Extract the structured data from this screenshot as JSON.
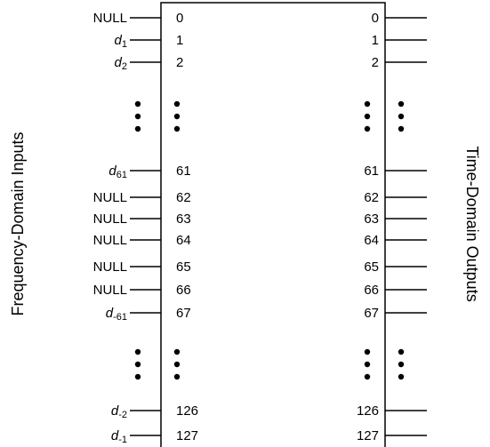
{
  "left_axis_label": "Frequency-Domain Inputs",
  "right_axis_label": "Time-Domain Outputs",
  "rows": [
    {
      "in_name": "NULL",
      "in_sub": "",
      "in_italic": false,
      "left_num": "0",
      "right_num": "0"
    },
    {
      "in_name": "d",
      "in_sub": "1",
      "in_italic": true,
      "left_num": "1",
      "right_num": "1"
    },
    {
      "in_name": "d",
      "in_sub": "2",
      "in_italic": true,
      "left_num": "2",
      "right_num": "2"
    },
    {
      "ellipsis": true
    },
    {
      "in_name": "d",
      "in_sub": "61",
      "in_italic": true,
      "left_num": "61",
      "right_num": "61"
    },
    {
      "in_name": "NULL",
      "in_sub": "",
      "in_italic": false,
      "left_num": "62",
      "right_num": "62"
    },
    {
      "in_name": "NULL",
      "in_sub": "",
      "in_italic": false,
      "left_num": "63",
      "right_num": "63"
    },
    {
      "in_name": "NULL",
      "in_sub": "",
      "in_italic": false,
      "left_num": "64",
      "right_num": "64"
    },
    {
      "in_name": "NULL",
      "in_sub": "",
      "in_italic": false,
      "left_num": "65",
      "right_num": "65"
    },
    {
      "in_name": "NULL",
      "in_sub": "",
      "in_italic": false,
      "left_num": "66",
      "right_num": "66"
    },
    {
      "in_name": "d",
      "in_sub": "-61",
      "in_italic": true,
      "left_num": "67",
      "right_num": "67"
    },
    {
      "ellipsis": true
    },
    {
      "in_name": "d",
      "in_sub": "-2",
      "in_italic": true,
      "left_num": "126",
      "right_num": "126"
    },
    {
      "in_name": "d",
      "in_sub": "-1",
      "in_italic": true,
      "left_num": "127",
      "right_num": "127"
    }
  ]
}
